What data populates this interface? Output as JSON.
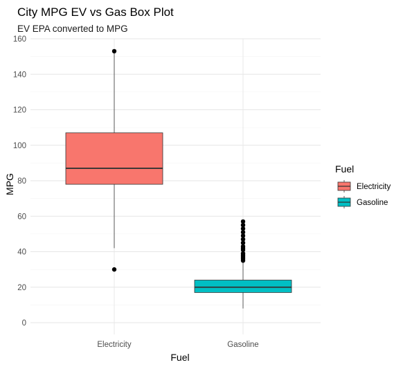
{
  "chart_data": {
    "type": "boxplot",
    "title": "City MPG EV vs Gas Box Plot",
    "subtitle": "EV EPA converted to MPG",
    "xlabel": "Fuel",
    "ylabel": "MPG",
    "ylim": [
      -3,
      160
    ],
    "yticks": [
      0,
      20,
      40,
      60,
      80,
      100,
      120,
      140,
      160
    ],
    "ytick_labels": [
      "0",
      "20",
      "40",
      "60",
      "80",
      "100",
      "120",
      "140",
      "160"
    ],
    "categories": [
      "Electricity",
      "Gasoline"
    ],
    "legend": {
      "title": "Fuel",
      "position": "right"
    },
    "grid": true,
    "series": [
      {
        "name": "Electricity",
        "color": "#F8766D",
        "q1": 78,
        "median": 87,
        "q3": 107,
        "whisker_low": 42,
        "whisker_high": 152,
        "outliers": [
          30,
          153
        ]
      },
      {
        "name": "Gasoline",
        "color": "#00BFC4",
        "q1": 17,
        "median": 20,
        "q3": 24,
        "whisker_low": 8,
        "whisker_high": 34,
        "outliers": [
          35,
          36,
          37,
          38,
          39,
          41,
          42,
          43,
          45,
          47,
          49,
          51,
          53,
          55,
          57
        ]
      }
    ]
  }
}
